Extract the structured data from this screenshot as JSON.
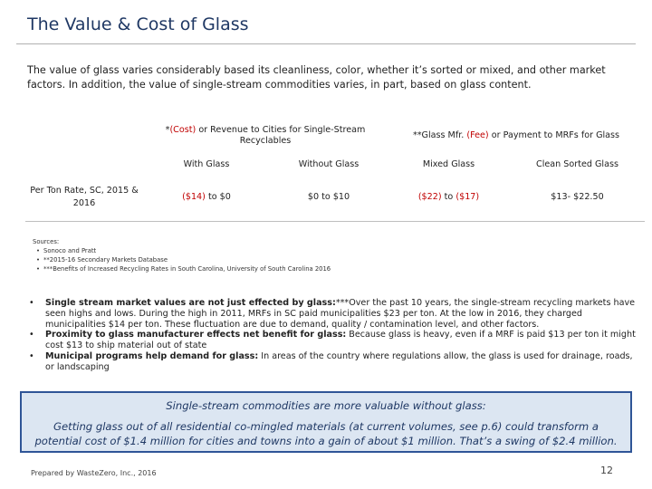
{
  "title": "The Value & Cost of Glass",
  "intro": "The value of glass varies considerably based its cleanliness, color, whether it’s sorted or mixed, and other market factors.  In addition, the value of single-stream commodities varies, in part, based on glass content.",
  "table": {
    "group1": {
      "prefix": "*",
      "cost": "(Cost)",
      "rest": " or Revenue to Cities for Single-Stream Recyclables"
    },
    "group2": {
      "prefix": "**Glass Mfr. ",
      "fee": "(Fee)",
      "rest": " or Payment to MRFs for Glass"
    },
    "columns": [
      "With Glass",
      "Without Glass",
      "Mixed Glass",
      "Clean Sorted Glass"
    ],
    "row_label": "Per Ton Rate, SC, 2015 & 2016",
    "with_glass": {
      "neg": "($14)",
      "rest": " to $0"
    },
    "without_glass": "$0 to $10",
    "mixed_glass": {
      "a": "($22)",
      "mid": " to ",
      "b": "($17)"
    },
    "clean_sorted": "$13- $22.50"
  },
  "sources": {
    "heading": "Sources:",
    "items": [
      "Sonoco and Pratt",
      "**2015-16 Secondary Markets Database",
      "***Benefits of Increased Recycling Rates in South Carolina, University of South Carolina 2016"
    ]
  },
  "bullets": [
    {
      "bold": "Single stream market values are not just effected by glass:",
      "text": "***Over the past 10 years, the single-stream recycling markets have seen highs and lows.  During the high in 2011, MRFs in SC paid municipalities $23 per ton.  At the low in 2016, they charged municipalities $14 per ton. These fluctuation are due to demand, quality / contamination level, and other factors."
    },
    {
      "bold": "Proximity to glass manufacturer effects net benefit for glass:",
      "text": " Because glass is heavy, even if a MRF is paid $13 per ton it might cost $13 to ship material out of state"
    },
    {
      "bold": "Municipal programs help demand for glass:",
      "text": "  In areas of the country where regulations allow, the glass is used for drainage, roads, or landscaping"
    }
  ],
  "callout": {
    "heading": "Single-stream commodities are more valuable without glass:",
    "body": "Getting glass out of all residential co-mingled materials (at current volumes, see p.6) could transform a potential cost of $1.4 million for cities and towns into a gain of about $1 million.  That’s a swing of $2.4 million."
  },
  "footer": "Prepared by WasteZero, Inc., 2016",
  "page_number": "12"
}
